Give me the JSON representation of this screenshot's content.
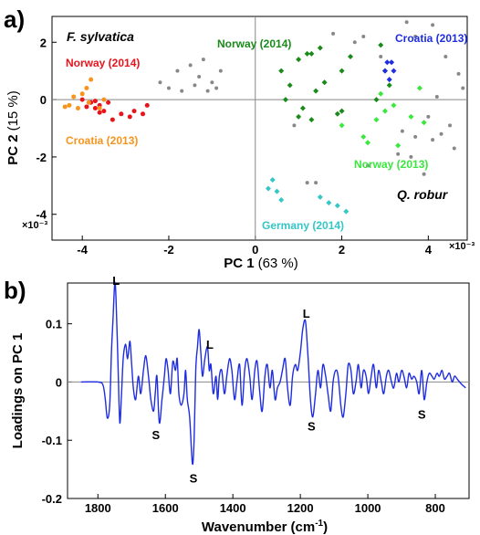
{
  "chart_data": [
    {
      "panel": "a)",
      "type": "scatter",
      "xlabel": "PC 1",
      "xlabel_unit": "(63 %)",
      "ylabel": "PC 2",
      "ylabel_unit": "(15 %)",
      "x_multiplier": "×10⁻³",
      "y_multiplier": "×10⁻³",
      "xlim": [
        -4.7,
        4.9
      ],
      "ylim": [
        -4.9,
        2.9
      ],
      "x_ticks": [
        -4,
        -2,
        0,
        2,
        4
      ],
      "y_ticks": [
        2,
        0,
        -2,
        -4
      ],
      "grid": false,
      "zero_lines": true,
      "species_labels": [
        {
          "text": "F. sylvatica",
          "position": "top-left"
        },
        {
          "text": "Q. robur",
          "position": "bottom-right"
        }
      ],
      "series": [
        {
          "name": "Norway (2014)",
          "species": "F. sylvatica",
          "color": "#e8141c",
          "points": [
            [
              -4.0,
              0.0
            ],
            [
              -3.9,
              -0.25
            ],
            [
              -3.8,
              -0.1
            ],
            [
              -3.7,
              -0.3
            ],
            [
              -3.6,
              -0.2
            ],
            [
              -3.5,
              -0.4
            ],
            [
              -3.4,
              -0.1
            ],
            [
              -3.3,
              -0.7
            ],
            [
              -3.1,
              -0.5
            ],
            [
              -2.9,
              -0.6
            ],
            [
              -2.8,
              -0.4
            ],
            [
              -2.6,
              -0.5
            ],
            [
              -2.5,
              -0.2
            ],
            [
              -3.7,
              -0.05
            ],
            [
              -3.6,
              -0.45
            ]
          ]
        },
        {
          "name": "Croatia (2013)",
          "species": "F. sylvatica",
          "color": "#f7941d",
          "points": [
            [
              -4.3,
              -0.2
            ],
            [
              -4.1,
              -0.3
            ],
            [
              -4.0,
              0.2
            ],
            [
              -3.9,
              0.4
            ],
            [
              -3.8,
              0.7
            ],
            [
              -4.2,
              0.1
            ],
            [
              -3.6,
              -0.3
            ],
            [
              -3.5,
              0.0
            ],
            [
              -4.4,
              -0.25
            ],
            [
              -3.85,
              -0.1
            ]
          ]
        },
        {
          "name": "Norway (2014)",
          "species": "Q. robur",
          "color": "#1a8a1a",
          "points": [
            [
              0.6,
              1.0
            ],
            [
              0.8,
              0.5
            ],
            [
              1.0,
              1.4
            ],
            [
              1.2,
              1.6
            ],
            [
              1.3,
              1.6
            ],
            [
              1.5,
              1.8
            ],
            [
              1.6,
              0.6
            ],
            [
              1.4,
              0.3
            ],
            [
              2.0,
              1.0
            ],
            [
              2.2,
              1.5
            ],
            [
              2.9,
              1.9
            ],
            [
              3.0,
              1.0
            ],
            [
              3.1,
              0.5
            ],
            [
              2.8,
              0.0
            ],
            [
              0.7,
              0.0
            ],
            [
              1.1,
              -0.3
            ],
            [
              1.3,
              -0.7
            ],
            [
              1.9,
              -0.5
            ],
            [
              2.0,
              -0.4
            ],
            [
              1.0,
              -0.6
            ]
          ]
        },
        {
          "name": "Croatia (2013)",
          "species": "Q. robur",
          "color": "#1f2de0",
          "points": [
            [
              3.05,
              1.3
            ],
            [
              3.15,
              1.3
            ],
            [
              3.2,
              1.0
            ],
            [
              3.1,
              0.7
            ],
            [
              3.0,
              1.0
            ]
          ]
        },
        {
          "name": "Norway (2013)",
          "species": "Q. robur",
          "color": "#39e83c",
          "points": [
            [
              2.0,
              -0.9
            ],
            [
              2.5,
              -1.3
            ],
            [
              2.6,
              -1.5
            ],
            [
              2.8,
              -0.7
            ],
            [
              3.0,
              -0.4
            ],
            [
              3.2,
              -0.2
            ],
            [
              3.6,
              -0.6
            ],
            [
              3.8,
              0.4
            ],
            [
              3.9,
              -0.8
            ],
            [
              2.9,
              0.2
            ],
            [
              3.3,
              -1.6
            ]
          ]
        },
        {
          "name": "Germany (2014)",
          "species": "Q. robur",
          "color": "#35c6c6",
          "points": [
            [
              0.4,
              -2.8
            ],
            [
              0.5,
              -3.2
            ],
            [
              0.6,
              -3.5
            ],
            [
              1.5,
              -3.4
            ],
            [
              1.9,
              -3.7
            ],
            [
              2.1,
              -3.9
            ],
            [
              0.3,
              -3.1
            ],
            [
              1.7,
              -3.6
            ]
          ]
        },
        {
          "name": "",
          "species": "",
          "color": "#888888",
          "points": [
            [
              -2.2,
              0.6
            ],
            [
              -2.0,
              0.4
            ],
            [
              -1.8,
              1.0
            ],
            [
              -1.7,
              0.3
            ],
            [
              -1.5,
              1.2
            ],
            [
              -1.3,
              0.8
            ],
            [
              -1.2,
              1.4
            ],
            [
              -1.0,
              0.6
            ],
            [
              -0.9,
              0.4
            ],
            [
              -0.8,
              1.0
            ],
            [
              -1.1,
              0.3
            ],
            [
              -1.4,
              0.5
            ],
            [
              1.8,
              2.3
            ],
            [
              2.3,
              2.0
            ],
            [
              2.5,
              2.2
            ],
            [
              3.5,
              2.7
            ],
            [
              3.7,
              2.2
            ],
            [
              4.1,
              2.6
            ],
            [
              4.4,
              1.5
            ],
            [
              4.8,
              0.4
            ],
            [
              4.2,
              0.1
            ],
            [
              4.0,
              -0.6
            ],
            [
              4.5,
              -0.9
            ],
            [
              4.6,
              -1.7
            ],
            [
              4.1,
              -1.4
            ],
            [
              3.7,
              -1.3
            ],
            [
              3.4,
              -1.1
            ],
            [
              3.6,
              -2.0
            ],
            [
              3.3,
              -1.9
            ],
            [
              1.2,
              -2.9
            ],
            [
              1.4,
              -2.9
            ],
            [
              2.6,
              -2.3
            ],
            [
              3.9,
              -2.6
            ],
            [
              4.3,
              -1.2
            ],
            [
              4.7,
              0.9
            ],
            [
              2.9,
              1.5
            ],
            [
              0.9,
              -0.9
            ]
          ]
        }
      ]
    },
    {
      "panel": "b)",
      "type": "line",
      "xlabel": "Wavenumber",
      "xlabel_unit": "(cm",
      "xlabel_unit_sup": "-1",
      "xlabel_unit_end": ")",
      "ylabel": "Loadings on PC 1",
      "xlim": [
        1890,
        700
      ],
      "ylim": [
        -0.2,
        0.17
      ],
      "x_reversed": true,
      "x_ticks": [
        1800,
        1600,
        1400,
        1200,
        1000,
        800
      ],
      "y_ticks": [
        0.1,
        0,
        -0.1,
        -0.2
      ],
      "y_tick_labels": [
        "0.1",
        "0",
        "-0.1",
        "-0.2"
      ],
      "grid": false,
      "zero_line": true,
      "line_color": "#1f2de0",
      "series": [
        {
          "name": "",
          "x": [
            1850,
            1800,
            1785,
            1778,
            1772,
            1765,
            1760,
            1755,
            1750,
            1746,
            1740,
            1735,
            1730,
            1725,
            1718,
            1712,
            1705,
            1700,
            1695,
            1688,
            1680,
            1673,
            1665,
            1658,
            1650,
            1643,
            1635,
            1630,
            1625,
            1618,
            1610,
            1603,
            1598,
            1592,
            1585,
            1578,
            1570,
            1565,
            1560,
            1553,
            1545,
            1540,
            1535,
            1528,
            1520,
            1515,
            1510,
            1505,
            1500,
            1495,
            1490,
            1483,
            1475,
            1470,
            1465,
            1458,
            1450,
            1445,
            1440,
            1433,
            1425,
            1418,
            1410,
            1403,
            1395,
            1388,
            1380,
            1373,
            1365,
            1358,
            1350,
            1343,
            1335,
            1328,
            1320,
            1313,
            1305,
            1298,
            1290,
            1283,
            1275,
            1268,
            1260,
            1253,
            1245,
            1238,
            1230,
            1223,
            1215,
            1208,
            1200,
            1193,
            1185,
            1178,
            1170,
            1163,
            1155,
            1148,
            1140,
            1133,
            1125,
            1118,
            1110,
            1103,
            1095,
            1088,
            1080,
            1073,
            1065,
            1058,
            1050,
            1043,
            1035,
            1028,
            1020,
            1013,
            1005,
            998,
            990,
            983,
            975,
            968,
            960,
            953,
            945,
            938,
            930,
            923,
            915,
            908,
            900,
            893,
            885,
            878,
            870,
            863,
            855,
            848,
            840,
            833,
            825,
            818,
            810,
            803,
            795,
            788,
            780,
            773,
            765,
            758,
            750,
            743,
            735,
            728,
            720,
            710
          ],
          "y": [
            0,
            0,
            -0.005,
            -0.03,
            -0.062,
            -0.04,
            0.05,
            0.11,
            0.17,
            0.14,
            0.02,
            -0.07,
            -0.02,
            0.04,
            0.065,
            0.04,
            0.07,
            0.03,
            -0.01,
            -0.03,
            0.01,
            -0.02,
            0.02,
            0.045,
            0.01,
            -0.03,
            -0.05,
            -0.02,
            0.01,
            -0.07,
            -0.03,
            0.01,
            0.04,
            0.02,
            -0.02,
            0.035,
            0.02,
            0.04,
            -0.02,
            -0.04,
            -0.02,
            0.02,
            -0.03,
            -0.06,
            -0.14,
            -0.1,
            0.02,
            0.06,
            0.09,
            0.05,
            0.01,
            0.04,
            0.06,
            0.02,
            0.03,
            -0.02,
            0.01,
            -0.03,
            0.01,
            0.02,
            -0.02,
            0.01,
            0.04,
            0.02,
            -0.03,
            0.0,
            0.03,
            -0.04,
            0.02,
            0.04,
            0.01,
            -0.03,
            0.02,
            0.035,
            -0.02,
            -0.05,
            0.01,
            0.03,
            -0.01,
            0.02,
            -0.03,
            -0.01,
            0.0,
            0.02,
            0.04,
            -0.01,
            -0.04,
            0.01,
            0.03,
            0.02,
            0.05,
            0.09,
            0.105,
            0.05,
            -0.03,
            -0.06,
            -0.02,
            0.02,
            -0.01,
            0.03,
            0.01,
            -0.02,
            -0.05,
            0.0,
            0.02,
            0.01,
            -0.04,
            -0.06,
            -0.02,
            0.03,
            0.02,
            -0.02,
            0.0,
            0.03,
            -0.01,
            0.02,
            0.01,
            -0.02,
            0.01,
            0.03,
            -0.01,
            0.02,
            0.0,
            -0.02,
            0.01,
            0.02,
            0.0,
            -0.01,
            0.015,
            0.0,
            0.02,
            0.01,
            -0.01,
            0.015,
            0.005,
            0.01,
            0.0,
            -0.02,
            0.02,
            -0.03,
            0.0,
            0.015,
            0.01,
            0.005,
            0.015,
            0.01,
            0.02,
            0.005,
            0.01,
            0.015,
            0.0,
            0.01,
            0.005,
            0.0,
            -0.005,
            -0.01
          ]
        }
      ],
      "annotations": [
        {
          "text": "L",
          "x": 1746,
          "y": 0.175
        },
        {
          "text": "L",
          "x": 1468,
          "y": 0.065
        },
        {
          "text": "L",
          "x": 1182,
          "y": 0.118
        },
        {
          "text": "S",
          "x": 1628,
          "y": -0.09
        },
        {
          "text": "S",
          "x": 1517,
          "y": -0.165
        },
        {
          "text": "S",
          "x": 1167,
          "y": -0.075
        },
        {
          "text": "S",
          "x": 840,
          "y": -0.055
        }
      ]
    }
  ]
}
